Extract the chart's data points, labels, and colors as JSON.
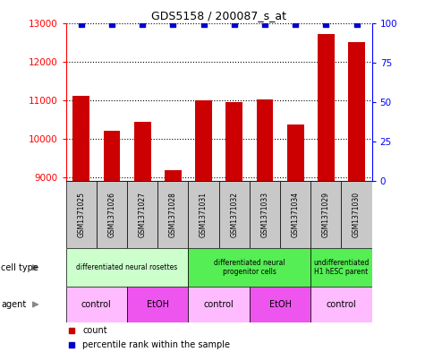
{
  "title": "GDS5158 / 200087_s_at",
  "samples": [
    "GSM1371025",
    "GSM1371026",
    "GSM1371027",
    "GSM1371028",
    "GSM1371031",
    "GSM1371032",
    "GSM1371033",
    "GSM1371034",
    "GSM1371029",
    "GSM1371030"
  ],
  "counts": [
    11100,
    10200,
    10450,
    9180,
    11000,
    10950,
    11030,
    10380,
    12700,
    12500
  ],
  "percentiles": [
    99,
    99,
    99,
    99,
    99,
    99,
    99,
    99,
    99,
    99
  ],
  "ylim_left": [
    8900,
    13000
  ],
  "ylim_right": [
    0,
    100
  ],
  "yticks_left": [
    9000,
    10000,
    11000,
    12000,
    13000
  ],
  "yticks_right": [
    0,
    25,
    50,
    75,
    100
  ],
  "bar_color": "#cc0000",
  "dot_color": "#0000cc",
  "cell_type_groups": [
    {
      "label": "differentiated neural rosettes",
      "start": 0,
      "end": 3,
      "color": "#ccffcc"
    },
    {
      "label": "differentiated neural\nprogenitor cells",
      "start": 4,
      "end": 7,
      "color": "#55ee55"
    },
    {
      "label": "undifferentiated\nH1 hESC parent",
      "start": 8,
      "end": 9,
      "color": "#55ee55"
    }
  ],
  "agent_groups": [
    {
      "label": "control",
      "start": 0,
      "end": 1,
      "color": "#ffbbff"
    },
    {
      "label": "EtOH",
      "start": 2,
      "end": 3,
      "color": "#ee55ee"
    },
    {
      "label": "control",
      "start": 4,
      "end": 5,
      "color": "#ffbbff"
    },
    {
      "label": "EtOH",
      "start": 6,
      "end": 7,
      "color": "#ee55ee"
    },
    {
      "label": "control",
      "start": 8,
      "end": 9,
      "color": "#ffbbff"
    }
  ],
  "bar_width": 0.55,
  "sample_box_color": "#c8c8c8",
  "grid_color": "#000000",
  "left_label_color": "#888888"
}
